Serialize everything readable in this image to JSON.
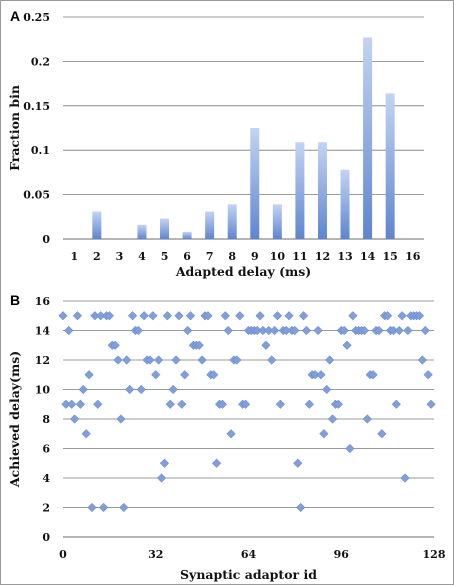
{
  "chart_data": [
    {
      "panel": "A",
      "type": "bar",
      "xlabel": "Adapted delay (ms)",
      "ylabel": "Fraction bin",
      "ylim": [
        0,
        0.25
      ],
      "yticks": [
        "0",
        "0.05",
        "0.1",
        "0.15",
        "0.2",
        "0.25"
      ],
      "categories": [
        "1",
        "2",
        "3",
        "4",
        "5",
        "6",
        "7",
        "8",
        "9",
        "10",
        "11",
        "12",
        "13",
        "14",
        "15",
        "16"
      ],
      "values": [
        0,
        0.031,
        0,
        0.016,
        0.023,
        0.008,
        0.031,
        0.039,
        0.125,
        0.039,
        0.109,
        0.109,
        0.078,
        0.227,
        0.164,
        0
      ],
      "bar_color": "#7f9fdc",
      "grid": true
    },
    {
      "panel": "B",
      "type": "scatter",
      "xlabel": "Synaptic adaptor id",
      "ylabel": "Achieved delay(ms)",
      "xlim": [
        0,
        128
      ],
      "ylim": [
        0,
        16
      ],
      "xticks": [
        "0",
        "32",
        "64",
        "96",
        "128"
      ],
      "yticks": [
        "0",
        "2",
        "4",
        "6",
        "8",
        "10",
        "12",
        "14",
        "16"
      ],
      "marker_color": "#7f9fdc",
      "grid": true,
      "x": [
        0,
        1,
        2,
        3,
        4,
        5,
        6,
        7,
        8,
        9,
        10,
        11,
        12,
        13,
        14,
        15,
        16,
        17,
        18,
        19,
        20,
        21,
        22,
        23,
        24,
        25,
        26,
        27,
        28,
        29,
        30,
        31,
        32,
        33,
        34,
        35,
        36,
        37,
        38,
        39,
        40,
        41,
        42,
        43,
        44,
        45,
        46,
        47,
        48,
        49,
        50,
        51,
        52,
        53,
        54,
        55,
        56,
        57,
        58,
        59,
        60,
        61,
        62,
        63,
        64,
        65,
        66,
        67,
        68,
        69,
        70,
        71,
        72,
        73,
        74,
        75,
        76,
        77,
        78,
        79,
        80,
        81,
        82,
        83,
        84,
        85,
        86,
        87,
        88,
        89,
        90,
        91,
        92,
        93,
        94,
        95,
        96,
        97,
        98,
        99,
        100,
        101,
        102,
        103,
        104,
        105,
        106,
        107,
        108,
        109,
        110,
        111,
        112,
        113,
        114,
        115,
        116,
        117,
        118,
        119,
        120,
        121,
        122,
        123,
        124,
        125,
        126,
        127
      ],
      "y": [
        15,
        9,
        14,
        9,
        8,
        15,
        9,
        10,
        7,
        11,
        2,
        15,
        9,
        15,
        2,
        15,
        15,
        13,
        13,
        12,
        8,
        2,
        12,
        10,
        15,
        14,
        14,
        10,
        15,
        12,
        12,
        15,
        11,
        12,
        4,
        5,
        15,
        9,
        10,
        12,
        15,
        9,
        11,
        14,
        15,
        13,
        13,
        13,
        12,
        15,
        15,
        11,
        11,
        5,
        9,
        9,
        15,
        14,
        7,
        12,
        12,
        15,
        9,
        9,
        14,
        14,
        14,
        14,
        15,
        14,
        13,
        14,
        12,
        14,
        15,
        9,
        14,
        14,
        15,
        14,
        14,
        5,
        2,
        15,
        14,
        9,
        11,
        11,
        14,
        11,
        7,
        10,
        12,
        8,
        9,
        9,
        14,
        14,
        13,
        6,
        15,
        14,
        14,
        14,
        14,
        8,
        11,
        11,
        14,
        14,
        7,
        15,
        15,
        14,
        14,
        9,
        14,
        15,
        4,
        14,
        15,
        15,
        15,
        15,
        12,
        14,
        11,
        9
      ]
    }
  ]
}
